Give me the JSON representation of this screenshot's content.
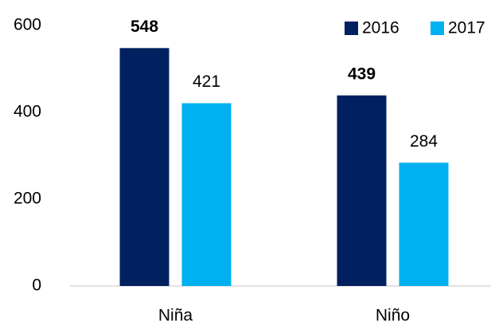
{
  "chart_data": {
    "type": "bar",
    "categories": [
      "Niña",
      "Niño"
    ],
    "series": [
      {
        "name": "2016",
        "color": "#002060",
        "label_color": "#2f5597",
        "label_bold": true,
        "values": [
          548,
          439
        ]
      },
      {
        "name": "2017",
        "color": "#00b0f0",
        "label_color": "#000000",
        "label_bold": false,
        "values": [
          421,
          284
        ]
      }
    ],
    "ylim": [
      0,
      600
    ],
    "yticks": [
      0,
      200,
      400,
      600
    ],
    "grid": false,
    "legend": "top-right"
  }
}
